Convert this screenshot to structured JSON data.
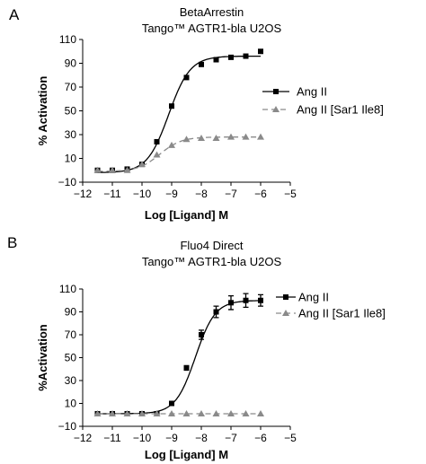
{
  "chart_data": [
    {
      "type": "line",
      "panel_label": "A",
      "title": "BetaArrestin",
      "subtitle": "Tango™ AGTR1-bla U2OS",
      "xlabel": "Log [Ligand] M",
      "ylabel": "% Activation",
      "xlim": [
        -12,
        -5
      ],
      "ylim": [
        -10,
        110
      ],
      "xticks": [
        -12,
        -11,
        -10,
        -9,
        -8,
        -7,
        -6,
        -5
      ],
      "yticks": [
        -10,
        10,
        30,
        50,
        70,
        90,
        110
      ],
      "xtick_labels": [
        "−12",
        "−11",
        "−10",
        "−9",
        "−8",
        "−7",
        "−6",
        "−5"
      ],
      "ytick_labels": [
        "−10",
        "10",
        "30",
        "50",
        "70",
        "90",
        "110"
      ],
      "grid": false,
      "legend_position": "right",
      "series": [
        {
          "name": "Ang II",
          "marker": "square",
          "color": "#000000",
          "line_style": "solid",
          "x": [
            -11.5,
            -11,
            -10.5,
            -10,
            -9.5,
            -9,
            -8.5,
            -8,
            -7.5,
            -7,
            -6.5,
            -6
          ],
          "y": [
            0,
            0,
            1,
            5,
            24,
            54,
            78,
            89,
            93,
            95,
            96,
            100
          ],
          "fit": {
            "bottom": -2,
            "top": 96,
            "log_ec50": -9.1,
            "hill": 1.2
          }
        },
        {
          "name": "Ang II [Sar1 Ile8]",
          "marker": "triangle",
          "color": "#8a8a8a",
          "line_style": "dashed",
          "x": [
            -11.5,
            -11,
            -10.5,
            -10,
            -9.5,
            -9,
            -8.5,
            -8,
            -7.5,
            -7,
            -6.5,
            -6
          ],
          "y": [
            0,
            0,
            0,
            5,
            13,
            21,
            26,
            27,
            27,
            28,
            28,
            28
          ],
          "fit": {
            "bottom": -1,
            "top": 28,
            "log_ec50": -9.4,
            "hill": 1.2
          }
        }
      ]
    },
    {
      "type": "line",
      "panel_label": "B",
      "title": "Fluo4 Direct",
      "subtitle": "Tango™ AGTR1-bla U2OS",
      "xlabel": "Log [Ligand] M",
      "ylabel": "%Activation",
      "xlim": [
        -12,
        -5
      ],
      "ylim": [
        -10,
        110
      ],
      "xticks": [
        -12,
        -11,
        -10,
        -9,
        -8,
        -7,
        -6,
        -5
      ],
      "yticks": [
        -10,
        10,
        30,
        50,
        70,
        90,
        110
      ],
      "xtick_labels": [
        "−12",
        "−11",
        "−10",
        "−9",
        "−8",
        "−7",
        "−6",
        "−5"
      ],
      "ytick_labels": [
        "−10",
        "10",
        "30",
        "50",
        "70",
        "90",
        "110"
      ],
      "grid": false,
      "legend_position": "top-right",
      "series": [
        {
          "name": "Ang II",
          "marker": "square",
          "color": "#000000",
          "line_style": "solid",
          "x": [
            -11.5,
            -11,
            -10.5,
            -10,
            -9.5,
            -9,
            -8.5,
            -8,
            -7.5,
            -7,
            -6.5,
            -6
          ],
          "y": [
            1,
            1,
            1,
            1,
            1,
            10,
            41,
            70,
            90,
            98,
            100,
            100
          ],
          "error": [
            0,
            0,
            0,
            0,
            0,
            1,
            2,
            4,
            5,
            6,
            6,
            5
          ],
          "fit": {
            "bottom": 1,
            "top": 100,
            "log_ec50": -8.2,
            "hill": 1.3
          }
        },
        {
          "name": "Ang II [Sar1 Ile8]",
          "marker": "triangle",
          "color": "#8a8a8a",
          "line_style": "dashed",
          "x": [
            -11.5,
            -11,
            -10.5,
            -10,
            -9.5,
            -9,
            -8.5,
            -8,
            -7.5,
            -7,
            -6.5,
            -6
          ],
          "y": [
            1,
            1,
            1,
            1,
            1,
            1,
            1,
            1,
            1,
            1,
            1,
            1
          ]
        }
      ]
    }
  ]
}
